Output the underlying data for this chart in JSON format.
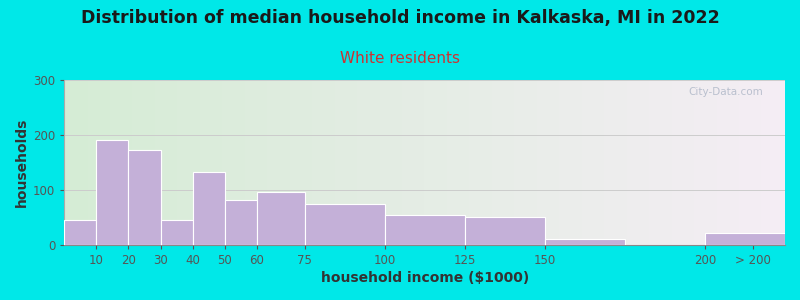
{
  "title": "Distribution of median household income in Kalkaska, MI in 2022",
  "subtitle": "White residents",
  "xlabel": "household income ($1000)",
  "ylabel": "households",
  "bar_color": "#c4b0d8",
  "bar_edge_color": "#ffffff",
  "background_outer": "#00e8e8",
  "background_inner_left": "#d5ecd5",
  "background_inner_right": "#f5eef5",
  "bin_edges": [
    0,
    10,
    20,
    30,
    40,
    50,
    60,
    75,
    100,
    125,
    150,
    175,
    200,
    225
  ],
  "values": [
    45,
    190,
    172,
    45,
    132,
    82,
    97,
    75,
    55,
    50,
    10,
    0,
    22
  ],
  "xtick_positions": [
    10,
    20,
    30,
    40,
    50,
    60,
    75,
    100,
    125,
    150,
    200
  ],
  "xtick_labels": [
    "10",
    "20",
    "30",
    "40",
    "50",
    "60",
    "75",
    "100",
    "125",
    "150",
    "200"
  ],
  "xtick_extra_pos": 215,
  "xtick_extra_label": "> 200",
  "ylim": [
    0,
    300
  ],
  "yticks": [
    0,
    100,
    200,
    300
  ],
  "watermark": "City-Data.com",
  "title_fontsize": 12.5,
  "subtitle_fontsize": 11,
  "axis_label_fontsize": 10
}
